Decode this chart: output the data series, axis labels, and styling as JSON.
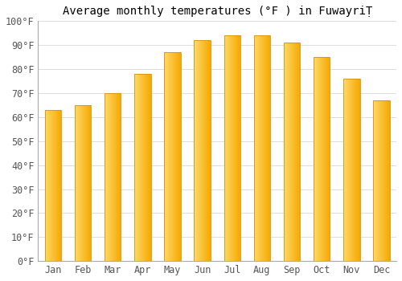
{
  "title": "Average monthly temperatures (°F ) in FuwayriṬ",
  "months": [
    "Jan",
    "Feb",
    "Mar",
    "Apr",
    "May",
    "Jun",
    "Jul",
    "Aug",
    "Sep",
    "Oct",
    "Nov",
    "Dec"
  ],
  "values": [
    63,
    65,
    70,
    78,
    87,
    92,
    94,
    94,
    91,
    85,
    76,
    67
  ],
  "bar_color_left": "#FFD966",
  "bar_color_right": "#F5A800",
  "bar_edge_color": "#D4920A",
  "background_color": "#ffffff",
  "plot_bg_color": "#ffffff",
  "ylim": [
    0,
    100
  ],
  "yticks": [
    0,
    10,
    20,
    30,
    40,
    50,
    60,
    70,
    80,
    90,
    100
  ],
  "ytick_labels": [
    "0°F",
    "10°F",
    "20°F",
    "30°F",
    "40°F",
    "50°F",
    "60°F",
    "70°F",
    "80°F",
    "90°F",
    "100°F"
  ],
  "title_fontsize": 10,
  "tick_fontsize": 8.5,
  "grid_color": "#dddddd",
  "bar_width": 0.55
}
